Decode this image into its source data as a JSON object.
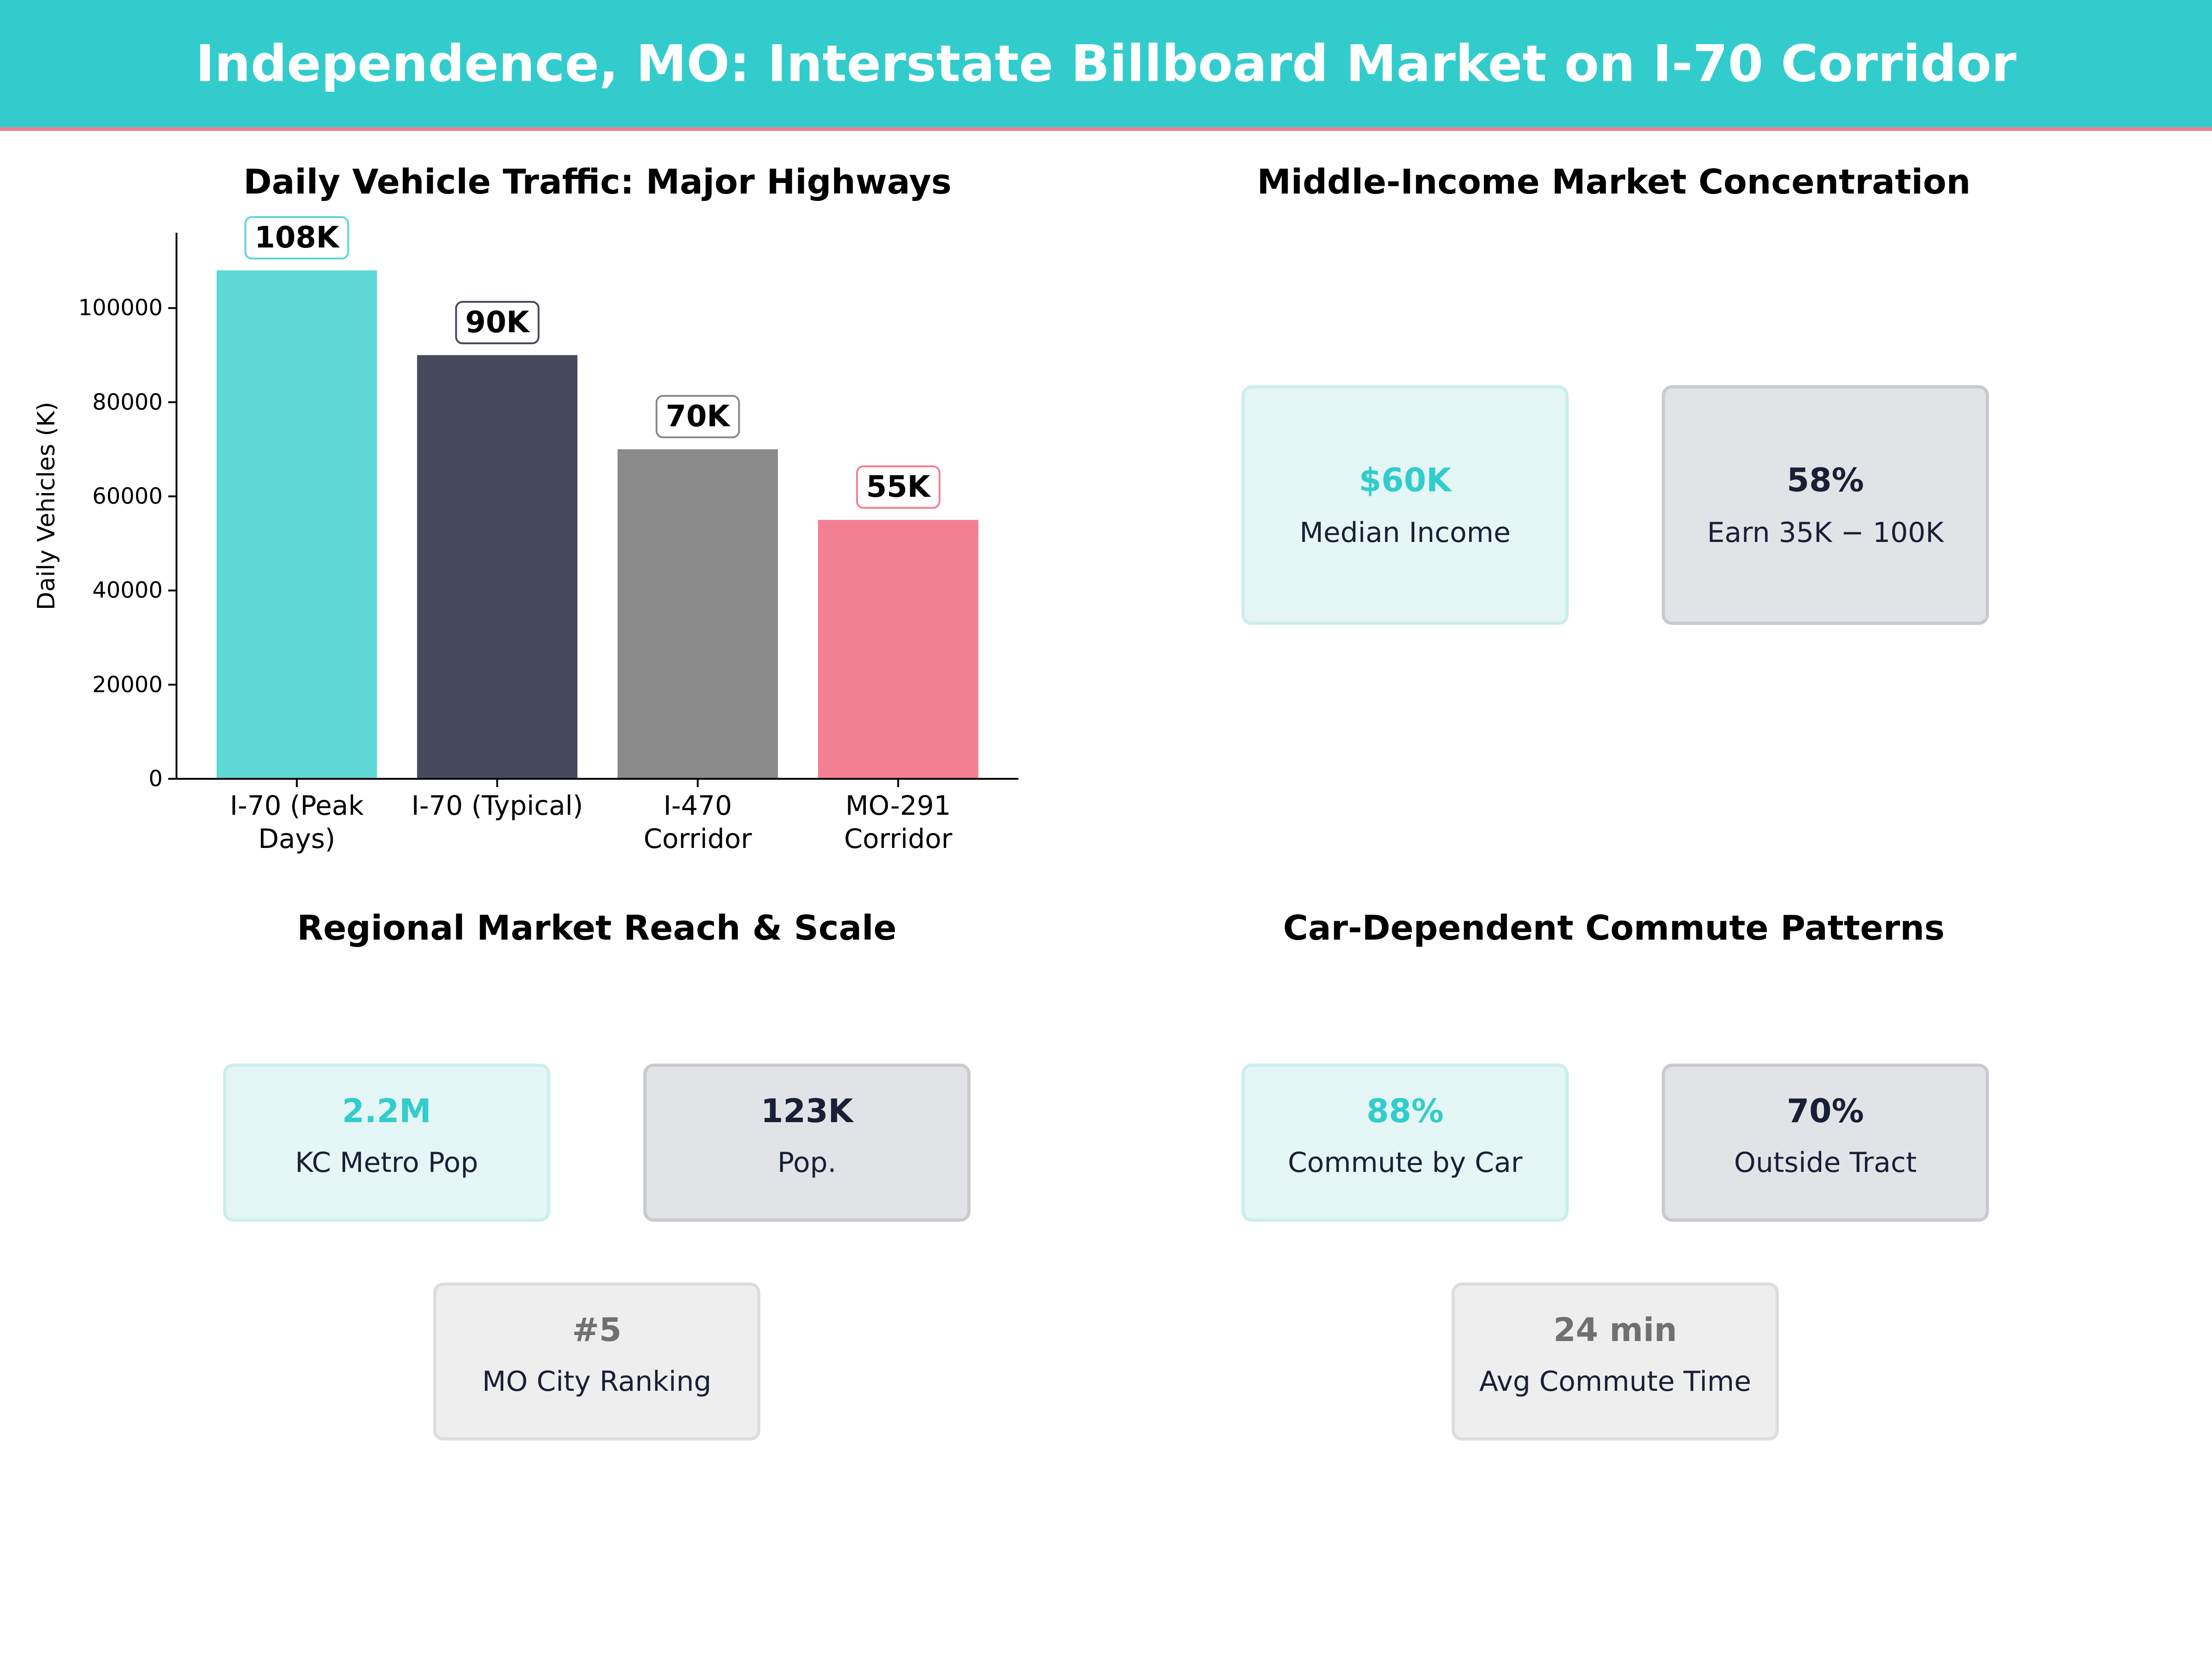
{
  "title": "Independence, MO: Interstate Billboard Market on I-70 Corridor",
  "chart_data": {
    "type": "bar",
    "title": "Daily Vehicle Traffic: Major Highways",
    "y_label": "Daily Vehicles (K)",
    "categories": [
      "I-70 (Peak Days)",
      "I-70 (Typical)",
      "I-470 Corridor",
      "MO-291 Corridor"
    ],
    "values": [
      108000,
      90000,
      70000,
      55000
    ],
    "value_labels": [
      "108K",
      "90K",
      "70K",
      "55K"
    ],
    "colors": [
      "#5dd8d4",
      "#464a5f",
      "#8a8a8a",
      "#f47f93"
    ],
    "label_border_colors": [
      "#5dd8d4",
      "#464a5f",
      "#8a8a8a",
      "#f47f93"
    ],
    "ylim": [
      0,
      116000
    ],
    "yticks": [
      0,
      20000,
      40000,
      60000,
      80000,
      100000
    ]
  },
  "panels": [
    {
      "title": "Middle-Income Market Concentration",
      "cards": [
        {
          "value": "$60K",
          "label": "Median Income"
        },
        {
          "value": "58%",
          "label": "Earn 35K − 100K"
        }
      ]
    },
    {
      "title": "Regional Market Reach & Scale",
      "cards": [
        {
          "value": "2.2M",
          "label": "KC Metro Pop"
        },
        {
          "value": "123K",
          "label": "Pop."
        },
        {
          "value": "#5",
          "label": "MO City Ranking"
        }
      ]
    },
    {
      "title": "Car-Dependent Commute Patterns",
      "cards": [
        {
          "value": "88%",
          "label": "Commute by Car"
        },
        {
          "value": "70%",
          "label": "Outside Tract"
        },
        {
          "value": "24 min",
          "label": "Avg Commute Time"
        }
      ]
    }
  ]
}
